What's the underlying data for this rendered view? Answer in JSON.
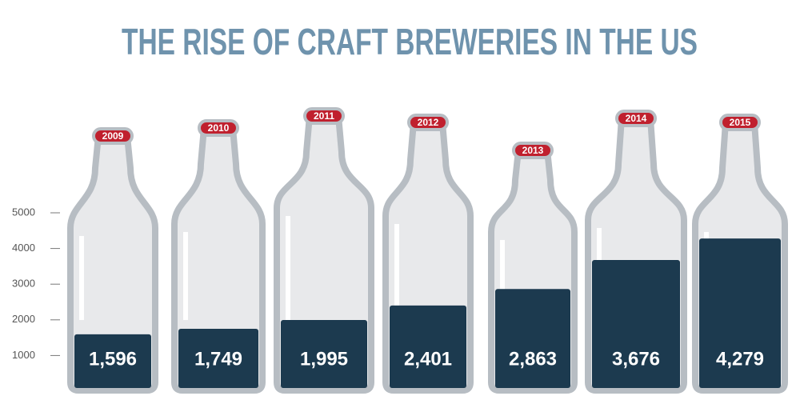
{
  "chart_data": {
    "type": "bar",
    "title": "THE RISE OF CRAFT BREWERIES IN THE US",
    "categories": [
      "2009",
      "2010",
      "2011",
      "2012",
      "2013",
      "2014",
      "2015"
    ],
    "values": [
      1596,
      1749,
      1995,
      2401,
      2863,
      3676,
      4279
    ],
    "value_labels": [
      "1,596",
      "1,749",
      "1,995",
      "2,401",
      "2,863",
      "3,676",
      "4,279"
    ],
    "color": "#1c3a4f",
    "ylim": [
      0,
      5000
    ],
    "yticks": [
      1000,
      2000,
      3000,
      4000,
      5000
    ]
  }
}
